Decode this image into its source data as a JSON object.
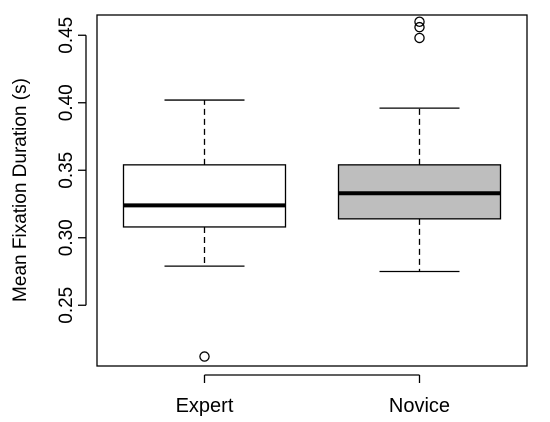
{
  "chart_data": {
    "type": "boxplot",
    "title": "",
    "xlabel": "",
    "ylabel": "Mean Fixation Duration (s)",
    "ylim": [
      0.205,
      0.465
    ],
    "yticks": [
      0.25,
      0.3,
      0.35,
      0.4,
      0.45
    ],
    "ytick_labels": [
      "0.25",
      "0.30",
      "0.35",
      "0.40",
      "0.45"
    ],
    "grid": false,
    "categories": [
      "Expert",
      "Novice"
    ],
    "series": [
      {
        "category": "Expert",
        "whisker_low": 0.279,
        "q1": 0.308,
        "median": 0.324,
        "q3": 0.354,
        "whisker_high": 0.402,
        "outliers": [
          0.212
        ],
        "fill": "#ffffff"
      },
      {
        "category": "Novice",
        "whisker_low": 0.275,
        "q1": 0.314,
        "median": 0.333,
        "q3": 0.354,
        "whisker_high": 0.396,
        "outliers": [
          0.448,
          0.456,
          0.46
        ],
        "fill": "#bebebe"
      }
    ]
  }
}
